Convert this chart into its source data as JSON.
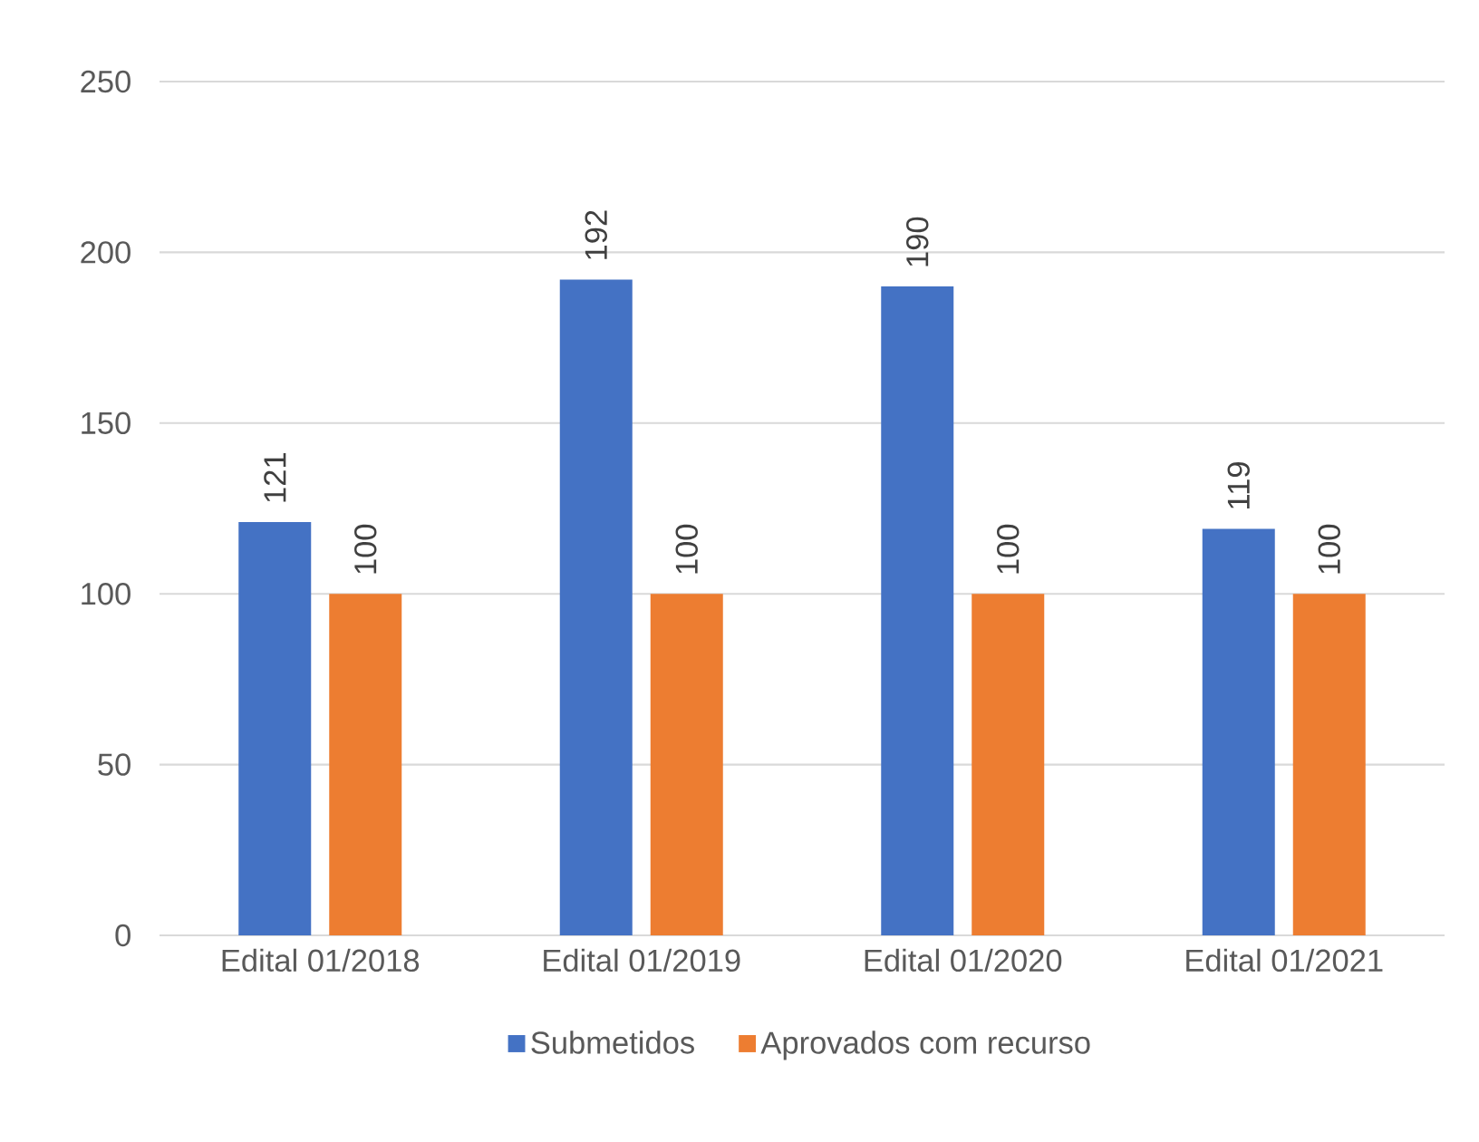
{
  "chart_data": {
    "type": "bar",
    "categories": [
      "Edital 01/2018",
      "Edital 01/2019",
      "Edital 01/2020",
      "Edital 01/2021"
    ],
    "series": [
      {
        "name": "Submetidos",
        "color": "#4472c4",
        "values": [
          121,
          192,
          190,
          119
        ]
      },
      {
        "name": "Aprovados com recurso",
        "color": "#ed7d31",
        "values": [
          100,
          100,
          100,
          100
        ]
      }
    ],
    "ylim": [
      0,
      250
    ],
    "yticks": [
      0,
      50,
      100,
      150,
      200,
      250
    ],
    "grid": "y",
    "legend": "bottom",
    "data_labels": true
  }
}
